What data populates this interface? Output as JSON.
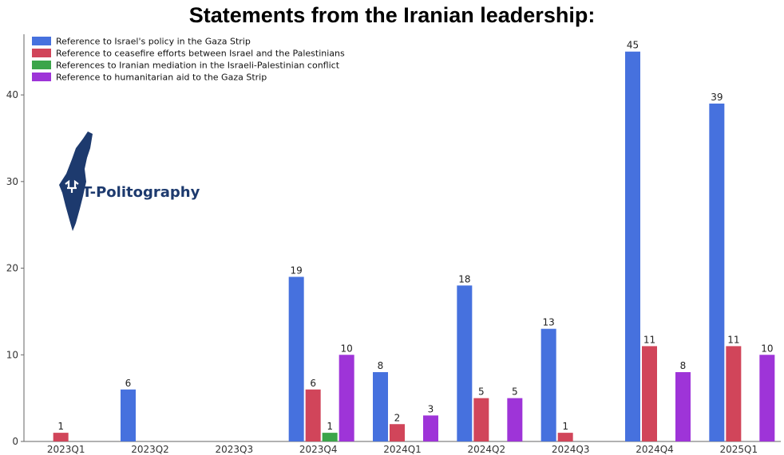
{
  "chart_data": {
    "type": "bar",
    "title": "Statements from the Iranian leadership:",
    "categories": [
      "2023Q1",
      "2023Q2",
      "2023Q3",
      "2023Q4",
      "2024Q1",
      "2024Q2",
      "2024Q3",
      "2024Q4",
      "2025Q1"
    ],
    "series": [
      {
        "name": "Reference to Israel's policy in the Gaza Strip",
        "color": "#4671de",
        "values": [
          0,
          6,
          0,
          19,
          8,
          18,
          13,
          45,
          39
        ]
      },
      {
        "name": "Reference to ceasefire efforts between Israel and the Palestinians",
        "color": "#d1455a",
        "values": [
          1,
          0,
          0,
          6,
          2,
          5,
          1,
          11,
          11
        ]
      },
      {
        "name": "References to Iranian mediation in the Israeli-Palestinian conflict",
        "color": "#3ba54a",
        "values": [
          0,
          0,
          0,
          1,
          0,
          0,
          0,
          0,
          0
        ]
      },
      {
        "name": "Reference to humanitarian aid to the Gaza Strip",
        "color": "#9e34d8",
        "values": [
          0,
          0,
          0,
          10,
          3,
          5,
          0,
          8,
          10
        ]
      }
    ],
    "ylim": [
      0,
      47
    ],
    "yticks": [
      0,
      10,
      20,
      30,
      40
    ],
    "xlabel": "",
    "ylabel": "",
    "legend": "top-left",
    "grid": false
  },
  "watermark": {
    "text": "T-Politography",
    "icon": "israel-map-icon",
    "color": "#1d3a6e"
  }
}
